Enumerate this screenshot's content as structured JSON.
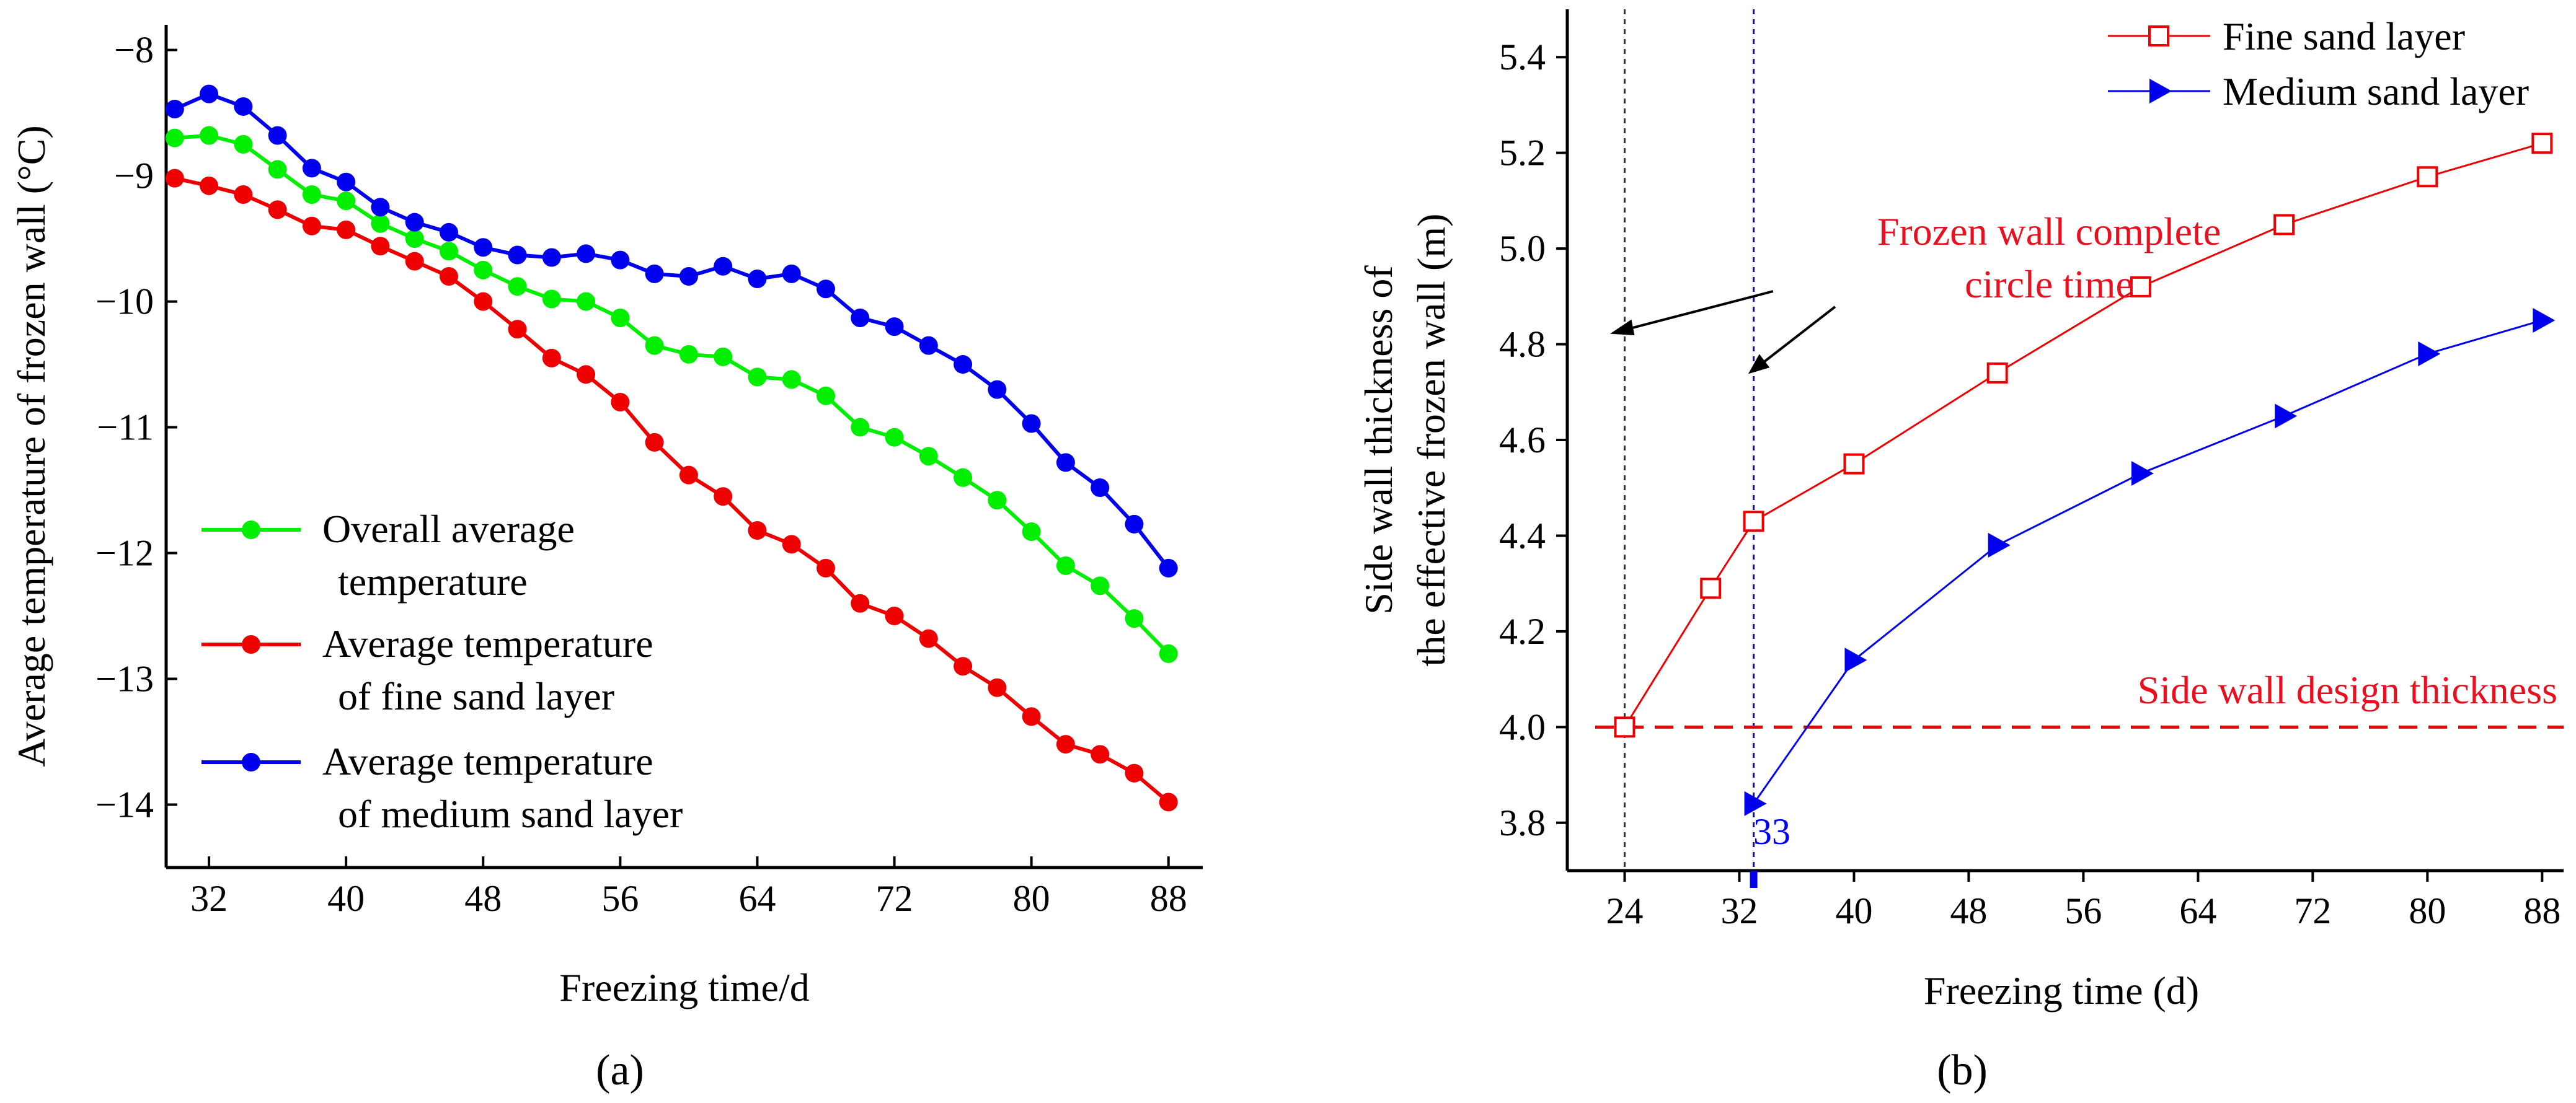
{
  "chart_data": [
    {
      "type": "line",
      "panel_label": "(a)",
      "xlabel": "Freezing time/d",
      "ylabel": "Average temperature of frozen wall (°C)",
      "xlim": [
        29.5,
        90
      ],
      "ylim": [
        -14.5,
        -7.8
      ],
      "xticks": [
        32,
        40,
        48,
        56,
        64,
        72,
        80,
        88
      ],
      "yticks": [
        -8,
        -9,
        -10,
        -11,
        -12,
        -13,
        -14
      ],
      "xtick_labels": [
        "32",
        "40",
        "48",
        "56",
        "64",
        "72",
        "80",
        "88"
      ],
      "ytick_labels": [
        "−8",
        "−9",
        "−10",
        "−11",
        "−12",
        "−13",
        "−14"
      ],
      "legend_position": "bottom-left",
      "series": [
        {
          "name_lines": [
            "Overall average",
            "temperature"
          ],
          "color": "#00ee00",
          "marker": "circle",
          "x": [
            30,
            32,
            34,
            36,
            38,
            40,
            42,
            44,
            46,
            48,
            50,
            52,
            54,
            56,
            58,
            60,
            62,
            64,
            66,
            68,
            70,
            72,
            74,
            76,
            78,
            80,
            82,
            84,
            86,
            88
          ],
          "y": [
            -8.7,
            -8.68,
            -8.75,
            -8.95,
            -9.15,
            -9.2,
            -9.38,
            -9.5,
            -9.6,
            -9.75,
            -9.88,
            -9.98,
            -10.0,
            -10.13,
            -10.35,
            -10.42,
            -10.44,
            -10.6,
            -10.62,
            -10.75,
            -11.0,
            -11.08,
            -11.23,
            -11.4,
            -11.58,
            -11.83,
            -12.1,
            -12.26,
            -12.52,
            -12.8
          ]
        },
        {
          "name_lines": [
            "Average temperature",
            "of fine sand layer"
          ],
          "color": "#ee0000",
          "marker": "circle",
          "x": [
            30,
            32,
            34,
            36,
            38,
            40,
            42,
            44,
            46,
            48,
            50,
            52,
            54,
            56,
            58,
            60,
            62,
            64,
            66,
            68,
            70,
            72,
            74,
            76,
            78,
            80,
            82,
            84,
            86,
            88
          ],
          "y": [
            -9.02,
            -9.08,
            -9.15,
            -9.27,
            -9.4,
            -9.43,
            -9.56,
            -9.68,
            -9.8,
            -10.0,
            -10.22,
            -10.45,
            -10.58,
            -10.8,
            -11.12,
            -11.38,
            -11.55,
            -11.82,
            -11.93,
            -12.12,
            -12.4,
            -12.5,
            -12.68,
            -12.9,
            -13.07,
            -13.3,
            -13.52,
            -13.6,
            -13.75,
            -13.98
          ]
        },
        {
          "name_lines": [
            "Average temperature",
            "of medium sand layer"
          ],
          "color": "#0000ee",
          "marker": "circle",
          "x": [
            30,
            32,
            34,
            36,
            38,
            40,
            42,
            44,
            46,
            48,
            50,
            52,
            54,
            56,
            58,
            60,
            62,
            64,
            66,
            68,
            70,
            72,
            74,
            76,
            78,
            80,
            82,
            84,
            86,
            88
          ],
          "y": [
            -8.47,
            -8.35,
            -8.45,
            -8.68,
            -8.94,
            -9.05,
            -9.25,
            -9.37,
            -9.45,
            -9.57,
            -9.63,
            -9.65,
            -9.62,
            -9.67,
            -9.78,
            -9.8,
            -9.72,
            -9.82,
            -9.78,
            -9.9,
            -10.13,
            -10.2,
            -10.35,
            -10.5,
            -10.7,
            -10.97,
            -11.28,
            -11.48,
            -11.77,
            -12.12
          ]
        }
      ]
    },
    {
      "type": "line",
      "panel_label": "(b)",
      "xlabel": "Freezing time (d)",
      "ylabel_lines": [
        "Side wall thickness of",
        "the effective frozen wall (m)"
      ],
      "xlim": [
        20,
        89.5
      ],
      "ylim": [
        3.7,
        5.5
      ],
      "xticks": [
        24,
        32,
        40,
        48,
        56,
        64,
        72,
        80,
        88
      ],
      "yticks": [
        3.8,
        4.0,
        4.2,
        4.4,
        4.6,
        4.8,
        5.0,
        5.2,
        5.4
      ],
      "xtick_labels": [
        "24",
        "32",
        "40",
        "48",
        "56",
        "64",
        "72",
        "80",
        "88"
      ],
      "ytick_labels": [
        "3.8",
        "4.0",
        "4.2",
        "4.4",
        "4.6",
        "4.8",
        "5.0",
        "5.2",
        "5.4"
      ],
      "legend_position": "top-right",
      "series": [
        {
          "name": "Fine sand layer",
          "color": "#ee0000",
          "marker": "open-square",
          "x": [
            24,
            30,
            33,
            40,
            50,
            60,
            70,
            80,
            88
          ],
          "y": [
            4.0,
            4.29,
            4.43,
            4.55,
            4.74,
            4.92,
            5.05,
            5.15,
            5.22
          ]
        },
        {
          "name": "Medium sand layer",
          "color": "#0000ee",
          "marker": "filled-triangle-right",
          "x": [
            33,
            40,
            50,
            60,
            70,
            80,
            88
          ],
          "y": [
            3.84,
            4.14,
            4.38,
            4.53,
            4.65,
            4.78,
            4.85
          ]
        }
      ],
      "design_thickness": {
        "value": 4.0,
        "label": "Side wall design thickness",
        "color": "#ee0000"
      },
      "complete_circle_annotation": {
        "lines": [
          "Frozen wall complete",
          "circle time"
        ],
        "color": "#ee0000",
        "x_values": [
          24,
          33
        ]
      },
      "marker_33": {
        "label": "33",
        "x": 33,
        "color": "#0000ee"
      }
    }
  ]
}
